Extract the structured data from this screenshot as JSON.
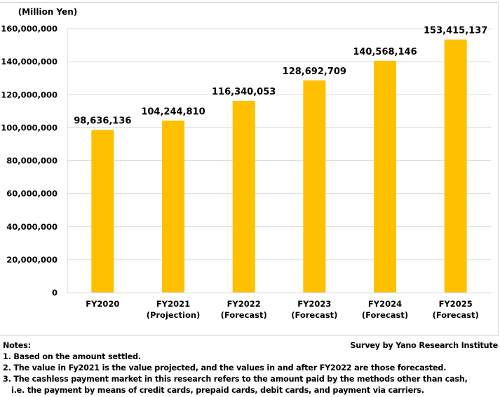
{
  "chart_data": {
    "type": "bar",
    "title": "",
    "unit_label": "(Million Yen)",
    "xlabel": "",
    "ylabel": "(Million Yen)",
    "ylim": [
      0,
      160000000
    ],
    "ytick_step": 20000000,
    "yticks": [
      "0",
      "20,000,000",
      "40,000,000",
      "60,000,000",
      "80,000,000",
      "100,000,000",
      "120,000,000",
      "140,000,000",
      "160,000,000"
    ],
    "grid": true,
    "bar_color": "#FFC000",
    "categories": [
      [
        "FY2020"
      ],
      [
        "FY2021",
        "(Projection)"
      ],
      [
        "FY2022",
        "(Forecast)"
      ],
      [
        "FY2023",
        "(Forecast)"
      ],
      [
        "FY2024",
        "(Forecast)"
      ],
      [
        "FY2025",
        "(Forecast)"
      ]
    ],
    "values": [
      98636136,
      104244810,
      116340053,
      128692709,
      140568146,
      153415137
    ],
    "data_labels": [
      "98,636,136",
      "104,244,810",
      "116,340,053",
      "128,692,709",
      "140,568,146",
      "153,415,137"
    ]
  },
  "notes": {
    "heading": "Notes:",
    "items": [
      "1. Based on the amount settled.",
      "2. The value in Fy2021 is the value projected, and the values in and after FY2022 are those forecasted.",
      "3. The cashless payment market in this research refers to the amount paid by the methods other than cash,",
      "i.e. the payment by means of credit cards, prepaid cards, debit cards, and payment via carriers."
    ]
  },
  "source": "Survey by Yano Research Institute"
}
